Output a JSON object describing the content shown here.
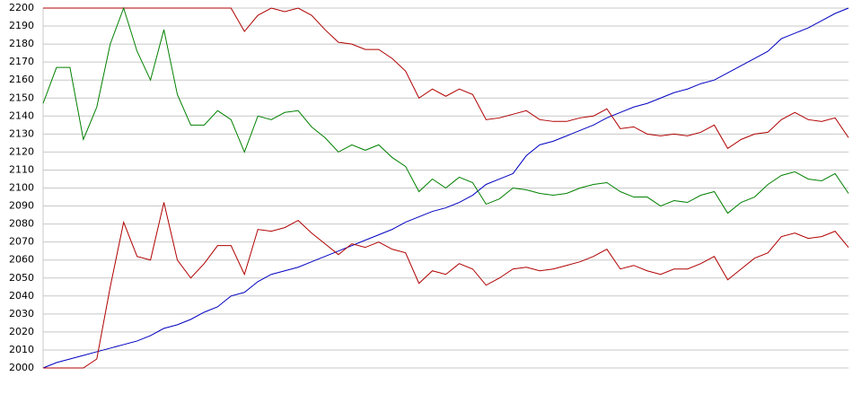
{
  "chart_data": {
    "type": "line",
    "ylim": [
      2000,
      2200
    ],
    "yticks": [
      2000,
      2010,
      2020,
      2030,
      2040,
      2050,
      2060,
      2070,
      2080,
      2090,
      2100,
      2110,
      2120,
      2130,
      2140,
      2150,
      2160,
      2170,
      2180,
      2190,
      2200
    ],
    "grid": true,
    "series": [
      {
        "color": "#0000c0",
        "values": [
          2000,
          2003,
          2005,
          2007,
          2009,
          2011,
          2013,
          2015,
          2018,
          2022,
          2024,
          2027,
          2031,
          2034,
          2040,
          2042,
          2048,
          2052,
          2054,
          2056,
          2059,
          2062,
          2065,
          2068,
          2071,
          2074,
          2077,
          2081,
          2084,
          2087,
          2089,
          2092,
          2096,
          2102,
          2105,
          2108,
          2118,
          2124,
          2126,
          2129,
          2132,
          2135,
          2139,
          2142,
          2145,
          2147,
          2150,
          2153,
          2155,
          2158,
          2160,
          2164,
          2168,
          2172,
          2176,
          2183,
          2186,
          2189,
          2193,
          2197,
          2200
        ]
      },
      {
        "color": "#b00000",
        "values": [
          2200,
          2200,
          2200,
          2200,
          2200,
          2200,
          2200,
          2200,
          2200,
          2200,
          2200,
          2200,
          2200,
          2200,
          2200,
          2187,
          2196,
          2200,
          2198,
          2200,
          2196,
          2188,
          2181,
          2180,
          2177,
          2177,
          2172,
          2165,
          2150,
          2155,
          2151,
          2155,
          2152,
          2138,
          2139,
          2141,
          2143,
          2138,
          2137,
          2137,
          2139,
          2140,
          2144,
          2133,
          2134,
          2130,
          2129,
          2130,
          2129,
          2131,
          2135,
          2122,
          2127,
          2130,
          2131,
          2138,
          2142,
          2138,
          2137,
          2139,
          2128
        ]
      },
      {
        "color": "#008000",
        "values": [
          2147,
          2167,
          2167,
          2127,
          2145,
          2180,
          2200,
          2176,
          2160,
          2188,
          2152,
          2135,
          2135,
          2143,
          2138,
          2120,
          2140,
          2138,
          2142,
          2143,
          2134,
          2128,
          2120,
          2124,
          2121,
          2124,
          2117,
          2112,
          2098,
          2105,
          2100,
          2106,
          2103,
          2091,
          2094,
          2100,
          2099,
          2097,
          2096,
          2097,
          2100,
          2102,
          2103,
          2098,
          2095,
          2095,
          2090,
          2093,
          2092,
          2096,
          2098,
          2086,
          2092,
          2095,
          2102,
          2107,
          2109,
          2105,
          2104,
          2108,
          2097
        ]
      },
      {
        "color": "#b00000",
        "values": [
          2000,
          2000,
          2000,
          2000,
          2005,
          2045,
          2081,
          2062,
          2060,
          2092,
          2060,
          2050,
          2058,
          2068,
          2068,
          2052,
          2077,
          2076,
          2078,
          2082,
          2075,
          2069,
          2063,
          2069,
          2067,
          2070,
          2066,
          2064,
          2047,
          2054,
          2052,
          2058,
          2055,
          2046,
          2050,
          2055,
          2056,
          2054,
          2055,
          2057,
          2059,
          2062,
          2066,
          2055,
          2057,
          2054,
          2052,
          2055,
          2055,
          2058,
          2062,
          2049,
          2055,
          2061,
          2064,
          2073,
          2075,
          2072,
          2073,
          2076,
          2067
        ]
      }
    ]
  }
}
